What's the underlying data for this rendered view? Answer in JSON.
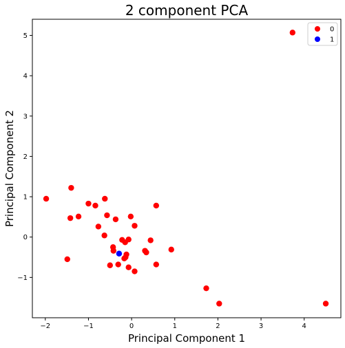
{
  "chart_data": {
    "type": "scatter",
    "title": "2 component PCA",
    "xlabel": "Principal Component 1",
    "ylabel": "Principal Component 2",
    "xlim": [
      -2.3,
      4.85
    ],
    "ylim": [
      -2.0,
      5.4
    ],
    "xticks": [
      -2,
      -1,
      0,
      1,
      2,
      3,
      4
    ],
    "xtick_labels": [
      "−2",
      "−1",
      "0",
      "1",
      "2",
      "3",
      "4"
    ],
    "yticks": [
      -1,
      0,
      1,
      2,
      3,
      4,
      5
    ],
    "ytick_labels": [
      "−1",
      "0",
      "1",
      "2",
      "3",
      "4",
      "5"
    ],
    "grid": false,
    "legend_position": "top-right",
    "series": [
      {
        "name": "0",
        "color": "#ff0000",
        "points": [
          [
            3.73,
            5.07
          ],
          [
            4.5,
            -1.65
          ],
          [
            2.03,
            -1.65
          ],
          [
            1.73,
            -1.27
          ],
          [
            -1.98,
            0.95
          ],
          [
            -1.4,
            1.22
          ],
          [
            -1.42,
            0.47
          ],
          [
            -1.23,
            0.51
          ],
          [
            -1.0,
            0.83
          ],
          [
            -0.84,
            0.78
          ],
          [
            -0.62,
            0.95
          ],
          [
            -0.77,
            0.26
          ],
          [
            -0.57,
            0.54
          ],
          [
            -0.63,
            0.04
          ],
          [
            -0.37,
            0.44
          ],
          [
            -0.02,
            0.51
          ],
          [
            0.07,
            0.28
          ],
          [
            0.57,
            0.78
          ],
          [
            -0.22,
            -0.07
          ],
          [
            -0.15,
            -0.13
          ],
          [
            -0.07,
            -0.06
          ],
          [
            -0.43,
            -0.25
          ],
          [
            -0.42,
            -0.34
          ],
          [
            -0.12,
            -0.43
          ],
          [
            -0.14,
            -0.5
          ],
          [
            -0.17,
            -0.53
          ],
          [
            -0.31,
            -0.68
          ],
          [
            -0.5,
            -0.7
          ],
          [
            -0.07,
            -0.75
          ],
          [
            0.07,
            -0.85
          ],
          [
            0.31,
            -0.34
          ],
          [
            0.34,
            -0.38
          ],
          [
            0.44,
            -0.08
          ],
          [
            0.92,
            -0.31
          ],
          [
            0.57,
            -0.68
          ],
          [
            -1.49,
            -0.55
          ]
        ]
      },
      {
        "name": "1",
        "color": "#0000ff",
        "points": [
          [
            -0.29,
            -0.41
          ]
        ]
      }
    ]
  }
}
